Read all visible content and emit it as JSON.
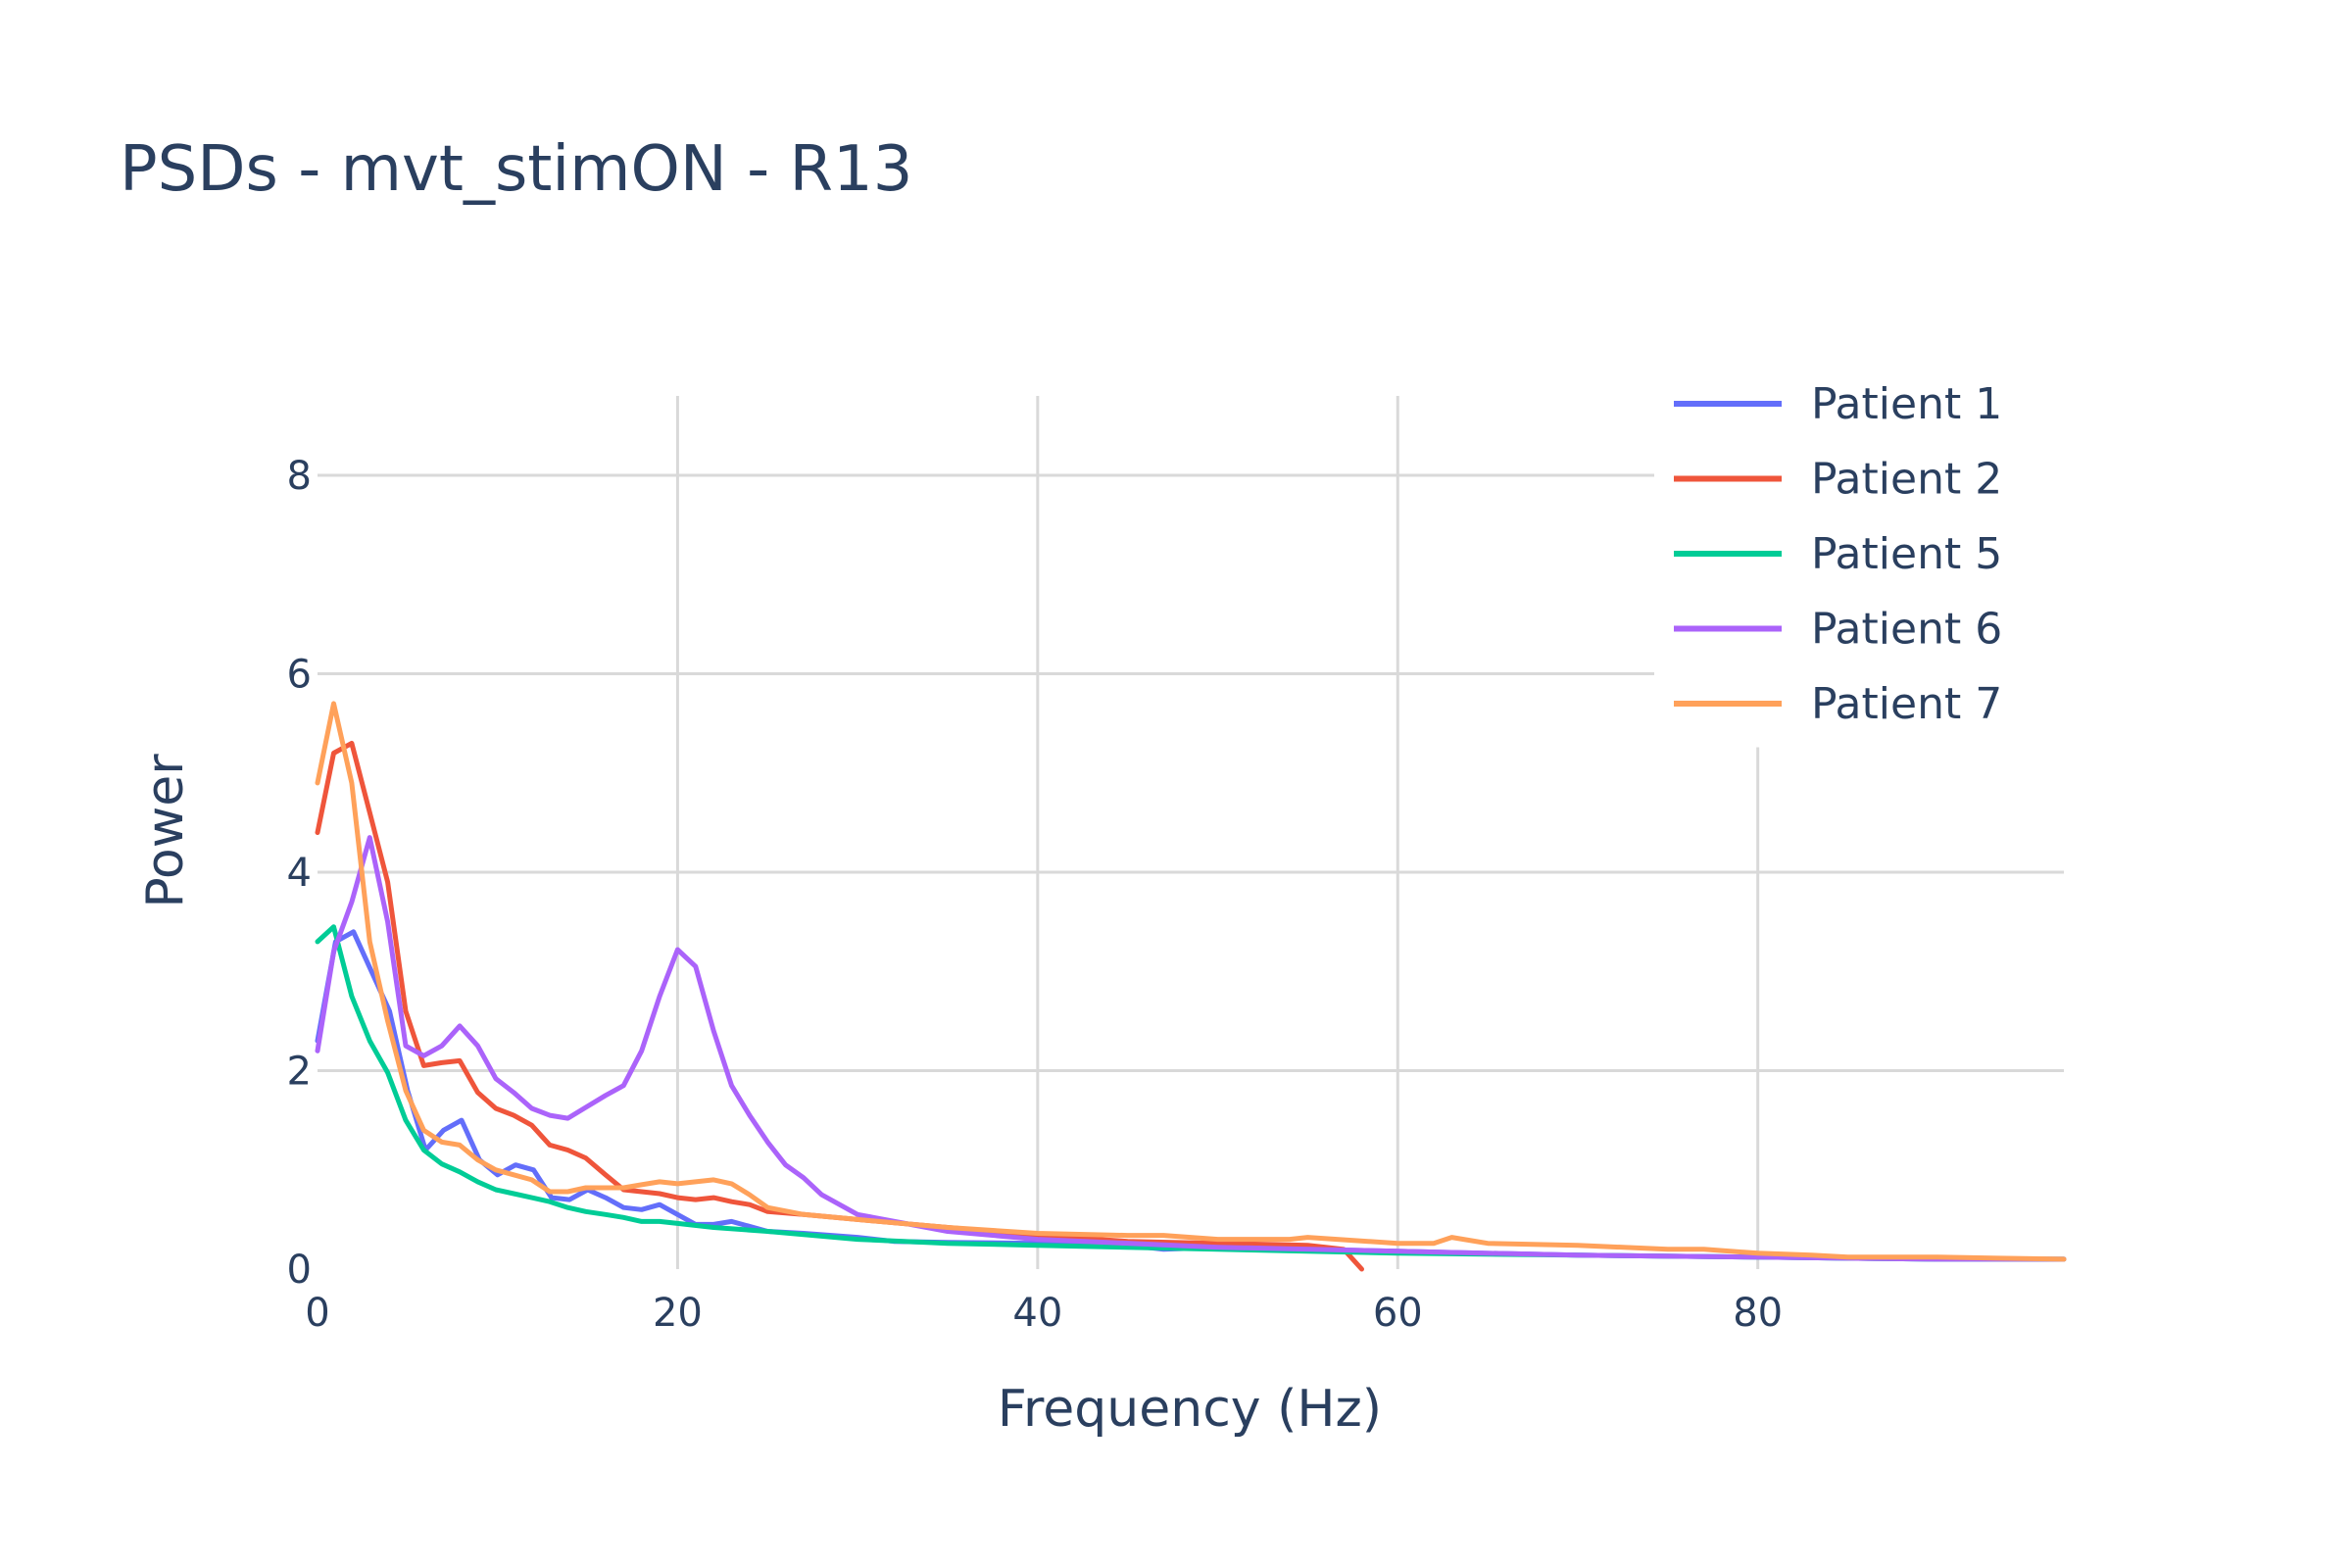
{
  "chart_data": {
    "type": "line",
    "title": "PSDs - mvt_stimON - R13",
    "xlabel": "Frequency (Hz)",
    "ylabel": "Power",
    "xlim": [
      0,
      97
    ],
    "ylim": [
      0,
      8.8
    ],
    "xticks": [
      0,
      20,
      40,
      60,
      80
    ],
    "yticks": [
      0,
      2,
      4,
      6,
      8
    ],
    "grid": true,
    "legend_position": "top-right",
    "series": [
      {
        "name": "Patient 1",
        "color": "#636efa",
        "x": [
          0,
          1,
          2,
          3,
          4,
          5,
          6,
          7,
          8,
          9,
          10,
          11,
          12,
          13,
          14,
          15,
          16,
          17,
          18,
          19,
          20,
          21,
          22,
          23,
          25,
          27,
          30,
          32,
          35,
          40,
          45,
          47,
          50,
          55,
          60,
          70,
          80,
          90,
          97
        ],
        "y": [
          2.3,
          3.3,
          3.4,
          3.0,
          2.6,
          1.8,
          1.2,
          1.4,
          1.5,
          1.1,
          0.95,
          1.05,
          1.0,
          0.72,
          0.7,
          0.8,
          0.72,
          0.62,
          0.6,
          0.65,
          0.55,
          0.45,
          0.45,
          0.48,
          0.38,
          0.36,
          0.32,
          0.28,
          0.27,
          0.26,
          0.24,
          0.2,
          0.22,
          0.2,
          0.18,
          0.14,
          0.12,
          0.1,
          0.1
        ]
      },
      {
        "name": "Patient 2",
        "color": "#ef553b",
        "x": [
          0,
          0.9,
          1.9,
          2.9,
          3.9,
          4.9,
          5.9,
          6.9,
          7.9,
          8.9,
          9.9,
          10.9,
          11.9,
          12.9,
          13.9,
          14.9,
          16,
          17,
          18,
          19,
          20,
          21,
          22,
          23,
          24,
          25,
          27,
          30,
          35,
          40,
          45,
          50,
          55,
          57,
          58
        ],
        "y": [
          4.4,
          5.2,
          5.3,
          4.6,
          3.9,
          2.6,
          2.05,
          2.08,
          2.1,
          1.78,
          1.62,
          1.55,
          1.45,
          1.25,
          1.2,
          1.12,
          0.95,
          0.8,
          0.78,
          0.76,
          0.72,
          0.7,
          0.72,
          0.68,
          0.65,
          0.58,
          0.55,
          0.5,
          0.42,
          0.34,
          0.28,
          0.26,
          0.24,
          0.2,
          0.0
        ]
      },
      {
        "name": "Patient 5",
        "color": "#00cc96",
        "x": [
          0,
          0.9,
          1.9,
          2.9,
          3.9,
          4.9,
          5.9,
          6.9,
          7.9,
          8.9,
          9.9,
          10.9,
          11.9,
          12.9,
          13.9,
          14.9,
          16,
          17,
          18,
          19,
          20,
          22,
          25,
          30,
          35,
          40,
          50,
          60,
          70,
          80,
          90,
          97
        ],
        "y": [
          3.3,
          3.45,
          2.75,
          2.3,
          1.98,
          1.5,
          1.2,
          1.06,
          0.98,
          0.88,
          0.8,
          0.76,
          0.72,
          0.68,
          0.62,
          0.58,
          0.55,
          0.52,
          0.48,
          0.48,
          0.46,
          0.42,
          0.38,
          0.3,
          0.26,
          0.24,
          0.2,
          0.16,
          0.14,
          0.12,
          0.1,
          0.1
        ]
      },
      {
        "name": "Patient 6",
        "color": "#ab63fa",
        "x": [
          0,
          0.9,
          1.9,
          2.9,
          3.9,
          4.9,
          5.9,
          6.9,
          7.9,
          8.9,
          9.9,
          10.9,
          11.9,
          12.9,
          13.9,
          14.9,
          16,
          17,
          18,
          19,
          20,
          21,
          22,
          23,
          24,
          25,
          26,
          27,
          28,
          30,
          35,
          40,
          50,
          60,
          70,
          80,
          90,
          97
        ],
        "y": [
          2.2,
          3.2,
          3.7,
          4.35,
          3.5,
          2.25,
          2.15,
          2.25,
          2.45,
          2.25,
          1.92,
          1.78,
          1.62,
          1.55,
          1.52,
          1.63,
          1.75,
          1.85,
          2.2,
          2.75,
          3.22,
          3.05,
          2.4,
          1.85,
          1.55,
          1.28,
          1.05,
          0.92,
          0.75,
          0.55,
          0.38,
          0.3,
          0.22,
          0.18,
          0.14,
          0.12,
          0.1,
          0.1
        ]
      },
      {
        "name": "Patient 7",
        "color": "#ffa15a",
        "x": [
          0,
          0.9,
          1.9,
          2.9,
          3.9,
          4.9,
          5.9,
          6.9,
          7.9,
          8.9,
          9.9,
          10.9,
          11.9,
          12.9,
          13.9,
          14.9,
          16,
          17,
          18,
          19,
          20,
          21,
          22,
          23,
          24,
          25,
          27,
          30,
          35,
          40,
          45,
          47,
          50,
          54,
          55,
          60,
          61,
          62,
          63,
          65,
          70,
          75,
          77,
          80,
          83,
          85,
          90,
          97
        ],
        "y": [
          4.9,
          5.7,
          4.9,
          3.3,
          2.5,
          1.8,
          1.4,
          1.28,
          1.25,
          1.1,
          1.0,
          0.95,
          0.9,
          0.78,
          0.78,
          0.82,
          0.82,
          0.82,
          0.85,
          0.88,
          0.86,
          0.88,
          0.9,
          0.86,
          0.75,
          0.62,
          0.55,
          0.5,
          0.42,
          0.36,
          0.34,
          0.34,
          0.3,
          0.3,
          0.32,
          0.26,
          0.26,
          0.26,
          0.32,
          0.26,
          0.24,
          0.2,
          0.2,
          0.16,
          0.14,
          0.12,
          0.12,
          0.1
        ]
      }
    ]
  }
}
